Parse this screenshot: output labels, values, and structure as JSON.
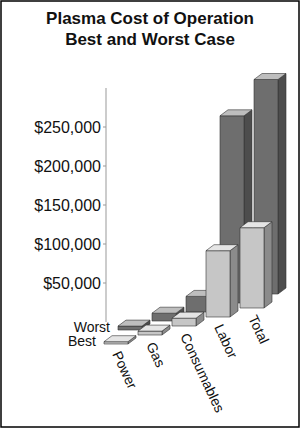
{
  "chart_data": {
    "type": "bar",
    "title": "Plasma Cost of Operation",
    "subtitle": "Best and Worst Case",
    "categories": [
      "Power",
      "Gas",
      "Consumables",
      "Labor",
      "Total"
    ],
    "series": [
      {
        "name": "Worst",
        "color": "#6e6e6e",
        "values": [
          5000,
          10000,
          20000,
          240000,
          275000
        ]
      },
      {
        "name": "Best",
        "color": "#c6c6c6",
        "values": [
          3000,
          5000,
          10000,
          85000,
          103000
        ]
      }
    ],
    "ylim": [
      0,
      300000
    ],
    "yticks": [
      {
        "value": 50000,
        "label": "$50,000"
      },
      {
        "value": 100000,
        "label": "$100,000"
      },
      {
        "value": 150000,
        "label": "$150,000"
      },
      {
        "value": 200000,
        "label": "$200,000"
      },
      {
        "value": 250000,
        "label": "$250,000"
      }
    ],
    "grid": false
  }
}
